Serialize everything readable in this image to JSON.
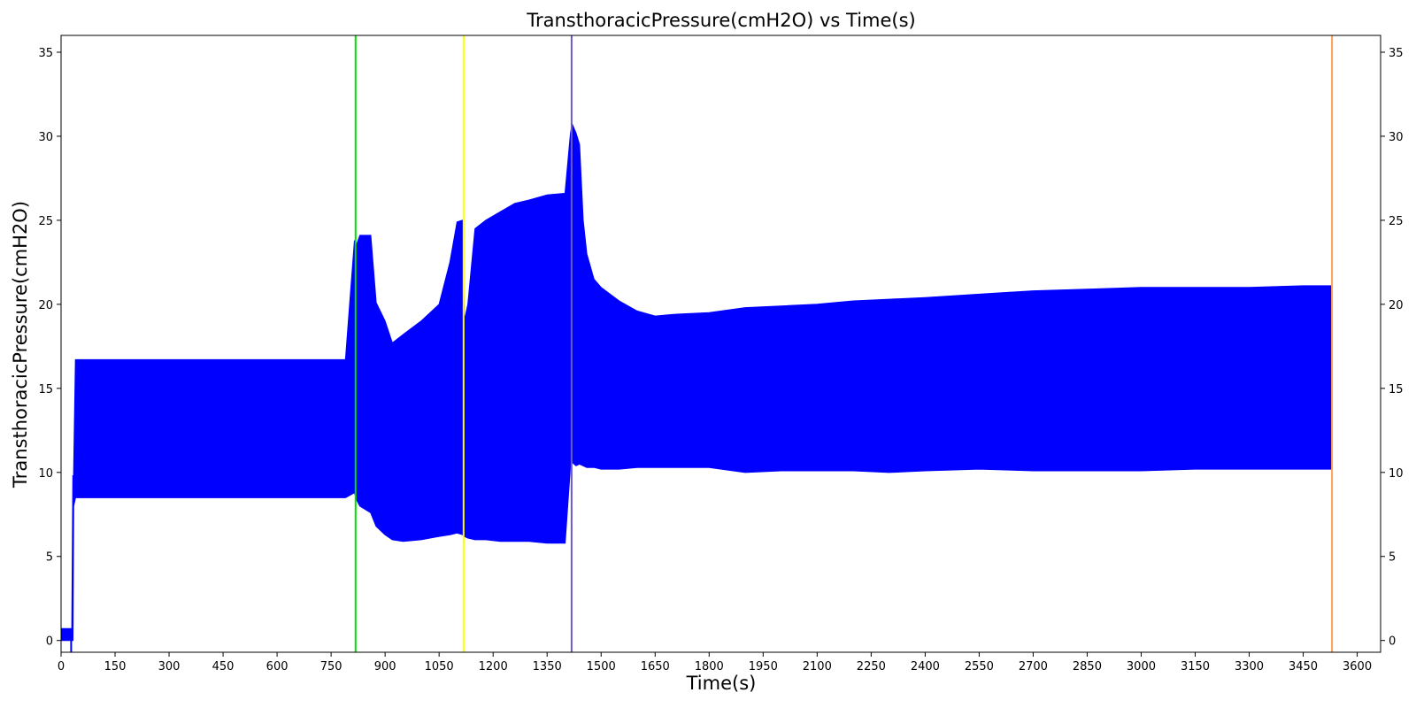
{
  "chart_data": {
    "type": "area",
    "title": "TransthoracicPressure(cmH2O) vs Time(s)",
    "xlabel": "Time(s)",
    "ylabel": "TransthoracicPressure(cmH2O)",
    "xlim": [
      0,
      3665
    ],
    "ylim": [
      -0.7,
      36
    ],
    "xticks": [
      0,
      150,
      300,
      450,
      600,
      750,
      900,
      1050,
      1200,
      1350,
      1500,
      1650,
      1800,
      1950,
      2100,
      2250,
      2400,
      2550,
      2700,
      2850,
      3000,
      3150,
      3300,
      3450,
      3600
    ],
    "yticks": [
      0,
      5,
      10,
      15,
      20,
      25,
      30,
      35
    ],
    "right_yticks": true,
    "grid": false,
    "series": [
      {
        "color": "#0000ff",
        "band": {
          "x": [
            0,
            30,
            33,
            35,
            40,
            100,
            500,
            790,
            815,
            820,
            830,
            860,
            875,
            900,
            920,
            950,
            1000,
            1050,
            1080,
            1100,
            1115,
            1120,
            1130,
            1150,
            1180,
            1220,
            1260,
            1300,
            1350,
            1400,
            1415,
            1420,
            1430,
            1440,
            1450,
            1460,
            1480,
            1500,
            1550,
            1600,
            1650,
            1700,
            1800,
            1900,
            2000,
            2100,
            2200,
            2300,
            2400,
            2550,
            2700,
            2850,
            3000,
            3150,
            3300,
            3450,
            3530
          ],
          "upper": [
            0.7,
            0.7,
            9.8,
            9.8,
            16.7,
            16.7,
            16.7,
            16.7,
            23.8,
            23.5,
            24.1,
            24.1,
            20.1,
            19.0,
            17.7,
            18.2,
            19.0,
            20.0,
            22.5,
            24.9,
            25.0,
            19.0,
            20.0,
            24.5,
            25.0,
            25.5,
            26.0,
            26.2,
            26.5,
            26.6,
            30.2,
            30.7,
            30.2,
            29.5,
            25.0,
            23.0,
            21.5,
            21.0,
            20.2,
            19.6,
            19.3,
            19.4,
            19.5,
            19.8,
            19.9,
            20.0,
            20.2,
            20.3,
            20.4,
            20.6,
            20.8,
            20.9,
            21.0,
            21.0,
            21.0,
            21.1,
            21.1
          ],
          "lower": [
            0.0,
            0.0,
            0.0,
            8.0,
            8.5,
            8.5,
            8.5,
            8.5,
            8.8,
            8.4,
            8.0,
            7.6,
            6.8,
            6.3,
            6.0,
            5.9,
            6.0,
            6.2,
            6.3,
            6.4,
            6.3,
            6.2,
            6.1,
            6.0,
            6.0,
            5.9,
            5.9,
            5.9,
            5.8,
            5.8,
            10.5,
            10.6,
            10.4,
            10.5,
            10.4,
            10.3,
            10.3,
            10.2,
            10.2,
            10.3,
            10.3,
            10.3,
            10.3,
            10.0,
            10.1,
            10.1,
            10.1,
            10.0,
            10.1,
            10.2,
            10.1,
            10.1,
            10.1,
            10.2,
            10.2,
            10.2,
            10.2
          ]
        }
      }
    ],
    "event_lines": [
      {
        "x": 818,
        "color": "#00e000"
      },
      {
        "x": 1118,
        "color": "#ffff00"
      },
      {
        "x": 1418,
        "color": "#6a5acd"
      },
      {
        "x": 3530,
        "color": "#ff9e55"
      }
    ]
  }
}
